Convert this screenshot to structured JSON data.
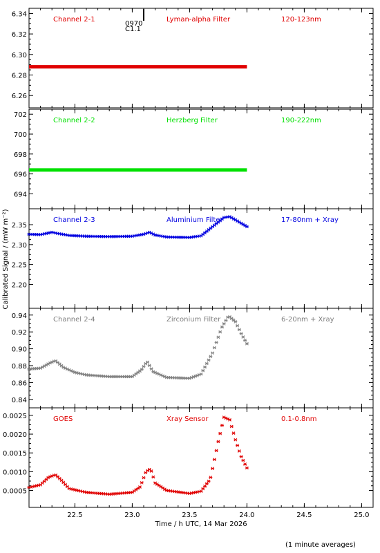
{
  "figure": {
    "ylabel": "Calibrated Signal / (mW m⁻²)",
    "xlabel": "Time / h UTC, 14 Mar 2026",
    "footnote": "(1 minute averages)",
    "event_marker": {
      "x": 23.15,
      "label_top": "0970",
      "label_bottom": "C1.1"
    }
  },
  "chart_data": [
    {
      "type": "scatter",
      "panel": "channel-2-1",
      "labels": [
        "Channel 2-1",
        "Lyman-alpha Filter",
        "120-123nm"
      ],
      "color": "#e00000",
      "xlim": [
        22.1,
        25.1
      ],
      "ylim": [
        6.248,
        6.345
      ],
      "yticks": [
        6.26,
        6.28,
        6.3,
        6.32,
        6.34
      ],
      "ytick_labels": [
        "6.26",
        "6.28",
        "6.30",
        "6.32",
        "6.34"
      ],
      "series": [
        {
          "x": [
            22.1,
            24.0
          ],
          "y": [
            6.288,
            6.288
          ],
          "constant": true
        }
      ]
    },
    {
      "type": "scatter",
      "panel": "channel-2-2",
      "labels": [
        "Channel 2-2",
        "Herzberg Filter",
        "190-222nm"
      ],
      "color": "#00e000",
      "xlim": [
        22.1,
        25.1
      ],
      "ylim": [
        692.5,
        702.5
      ],
      "yticks": [
        694,
        696,
        698,
        700,
        702
      ],
      "ytick_labels": [
        "694",
        "696",
        "698",
        "700",
        "702"
      ],
      "series": [
        {
          "x": [
            22.1,
            24.0
          ],
          "y": [
            696.4,
            696.4
          ],
          "constant": true
        }
      ]
    },
    {
      "type": "scatter",
      "panel": "channel-2-3",
      "labels": [
        "Channel 2-3",
        "Aluminium Filter",
        "17-80nm + Xray"
      ],
      "color": "#0000e0",
      "xlim": [
        22.1,
        25.1
      ],
      "ylim": [
        2.14,
        2.39
      ],
      "yticks": [
        2.2,
        2.25,
        2.3,
        2.35
      ],
      "ytick_labels": [
        "2.20",
        "2.25",
        "2.30",
        "2.35"
      ],
      "series": [
        {
          "x": [
            22.1,
            22.2,
            22.3,
            22.35,
            22.45,
            22.6,
            22.8,
            23.0,
            23.1,
            23.15,
            23.2,
            23.3,
            23.5,
            23.6,
            23.7,
            23.8,
            23.85,
            23.9,
            24.0
          ],
          "y": [
            2.326,
            2.325,
            2.331,
            2.328,
            2.323,
            2.321,
            2.32,
            2.321,
            2.326,
            2.331,
            2.324,
            2.319,
            2.318,
            2.322,
            2.345,
            2.368,
            2.37,
            2.362,
            2.345
          ]
        }
      ]
    },
    {
      "type": "scatter",
      "panel": "channel-2-4",
      "labels": [
        "Channel 2-4",
        "Zirconium Filter",
        "6-20nm + Xray"
      ],
      "color": "#808080",
      "xlim": [
        22.1,
        25.1
      ],
      "ylim": [
        0.83,
        0.948
      ],
      "yticks": [
        0.84,
        0.86,
        0.88,
        0.9,
        0.92,
        0.94
      ],
      "ytick_labels": [
        "0.84",
        "0.86",
        "0.88",
        "0.90",
        "0.92",
        "0.94"
      ],
      "series": [
        {
          "x": [
            22.1,
            22.2,
            22.28,
            22.33,
            22.4,
            22.5,
            22.6,
            22.8,
            23.0,
            23.08,
            23.13,
            23.18,
            23.3,
            23.5,
            23.6,
            23.7,
            23.78,
            23.84,
            23.9,
            23.95,
            24.0
          ],
          "y": [
            0.876,
            0.877,
            0.883,
            0.886,
            0.878,
            0.872,
            0.869,
            0.867,
            0.867,
            0.875,
            0.885,
            0.873,
            0.866,
            0.865,
            0.87,
            0.895,
            0.925,
            0.939,
            0.932,
            0.918,
            0.906
          ]
        }
      ]
    },
    {
      "type": "scatter",
      "panel": "goes",
      "labels": [
        "GOES",
        "Xray Sensor",
        "0.1-0.8nm"
      ],
      "color": "#e00000",
      "xlim": [
        22.1,
        25.1
      ],
      "ylim": [
        5e-05,
        0.0027
      ],
      "yticks": [
        0.0005,
        0.001,
        0.0015,
        0.002,
        0.0025
      ],
      "ytick_labels": [
        "0.0005",
        "0.0010",
        "0.0015",
        "0.0020",
        "0.0025"
      ],
      "series": [
        {
          "x": [
            22.1,
            22.2,
            22.27,
            22.33,
            22.38,
            22.45,
            22.6,
            22.8,
            23.0,
            23.07,
            23.12,
            23.16,
            23.2,
            23.3,
            23.5,
            23.6,
            23.68,
            23.75,
            23.8,
            23.85,
            23.9,
            23.95,
            24.0
          ],
          "y": [
            0.00058,
            0.00065,
            0.00085,
            0.00092,
            0.00078,
            0.00055,
            0.00045,
            0.0004,
            0.00045,
            0.0006,
            0.001,
            0.00108,
            0.0007,
            0.0005,
            0.00042,
            0.00048,
            0.0008,
            0.0018,
            0.00245,
            0.00238,
            0.00185,
            0.0014,
            0.0011
          ]
        }
      ]
    }
  ],
  "x_axis": {
    "ticks": [
      22.5,
      23.0,
      23.5,
      24.0,
      24.5,
      25.0
    ],
    "tick_labels": [
      "22.5",
      "23.0",
      "23.5",
      "24.0",
      "24.5",
      "25.0"
    ]
  }
}
